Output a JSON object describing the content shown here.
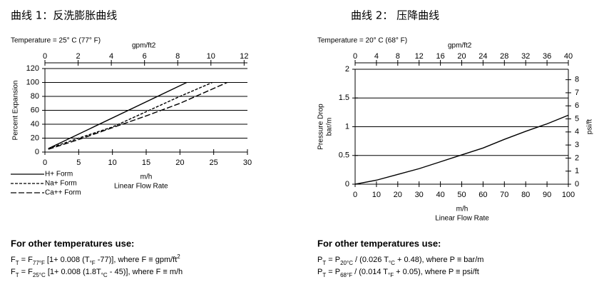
{
  "chart_data": [
    {
      "type": "line",
      "title": "曲线 1：反洗膨胀曲线",
      "subtitle": "Temperature = 25° C (77° F)",
      "x2label": "gpm/ft2",
      "x2lim": [
        0,
        12.2
      ],
      "x2ticks": [
        0,
        2,
        4,
        6,
        8,
        10,
        12
      ],
      "xlabel": [
        "m/h",
        "Linear Flow Rate"
      ],
      "xlim": [
        0,
        30
      ],
      "xticks": [
        0,
        5,
        10,
        15,
        20,
        25,
        30
      ],
      "ylabel": [
        "Percent Expansion"
      ],
      "ylim": [
        0,
        120
      ],
      "yticks": [
        0,
        20,
        40,
        60,
        80,
        100,
        120
      ],
      "grid": true,
      "series": [
        {
          "name": "H+ Form",
          "color": "#000000",
          "dash": "none",
          "x": [
            0.5,
            21
          ],
          "values": [
            5,
            100
          ]
        },
        {
          "name": "Na+ Form",
          "color": "#000000",
          "dash": "4 2",
          "x": [
            0.5,
            5,
            10,
            15,
            20,
            24.8
          ],
          "values": [
            5,
            20,
            36,
            58,
            80,
            100
          ]
        },
        {
          "name": "Ca++ Form",
          "color": "#000000",
          "dash": "8 3",
          "x": [
            0.5,
            5,
            10,
            15,
            20,
            27
          ],
          "values": [
            4,
            18,
            35,
            52,
            70,
            100
          ]
        }
      ],
      "footer": {
        "heading": "For other temperatures use:",
        "formulas": [
          [
            {
              "text": "F"
            },
            {
              "text": "T",
              "style": "sub"
            },
            {
              "text": " = F"
            },
            {
              "text": "77°F",
              "style": "sub"
            },
            {
              "text": " [1+ 0.008 (T"
            },
            {
              "text": "°F",
              "style": "sub"
            },
            {
              "text": " -77)], where F ≡ gpm/ft"
            },
            {
              "text": "2",
              "style": "super"
            }
          ],
          [
            {
              "text": "F"
            },
            {
              "text": "T",
              "style": "sub"
            },
            {
              "text": " = F"
            },
            {
              "text": "25°C",
              "style": "sub"
            },
            {
              "text": " [1+ 0.008 (1.8T"
            },
            {
              "text": "°C",
              "style": "sub"
            },
            {
              "text": " - 45)], where F ≡ m/h"
            }
          ]
        ]
      }
    },
    {
      "type": "line",
      "title": "曲线 2： 压降曲线",
      "subtitle": "Temperature = 20° C (68° F)",
      "x2label": "gpm/ft2",
      "x2lim": [
        0,
        40
      ],
      "x2ticks": [
        0,
        4,
        8,
        12,
        16,
        20,
        24,
        28,
        32,
        36,
        40
      ],
      "xlabel": [
        "m/h",
        "Linear Flow Rate"
      ],
      "xlim": [
        0,
        100
      ],
      "xticks": [
        0,
        10,
        20,
        30,
        40,
        50,
        60,
        70,
        80,
        90,
        100
      ],
      "ylabel": [
        "Pressure Drop",
        "bar/m"
      ],
      "ylim": [
        0,
        2
      ],
      "yticks": [
        0,
        0.5,
        1,
        1.5,
        2
      ],
      "y2label": "psi/ft",
      "y2lim": [
        0,
        8.8
      ],
      "y2ticks": [
        0,
        1,
        2,
        3,
        4,
        5,
        6,
        7,
        8
      ],
      "grid": true,
      "series": [
        {
          "color": "#000000",
          "dash": "none",
          "x": [
            0,
            10,
            20,
            30,
            40,
            50,
            60,
            70,
            80,
            90,
            100
          ],
          "values": [
            0,
            0.07,
            0.17,
            0.27,
            0.39,
            0.51,
            0.63,
            0.78,
            0.92,
            1.05,
            1.2
          ]
        }
      ],
      "footer": {
        "heading": "For other temperatures use:",
        "formulas": [
          [
            {
              "text": "P"
            },
            {
              "text": "T",
              "style": "sub"
            },
            {
              "text": " = P"
            },
            {
              "text": "20°C",
              "style": "sub"
            },
            {
              "text": " / (0.026 T"
            },
            {
              "text": "°C",
              "style": "sub"
            },
            {
              "text": " + 0.48), where P ≡ bar/m"
            }
          ],
          [
            {
              "text": "P"
            },
            {
              "text": "T",
              "style": "sub"
            },
            {
              "text": " = P"
            },
            {
              "text": "68°F",
              "style": "sub"
            },
            {
              "text": " / (0.014 T"
            },
            {
              "text": "°F",
              "style": "sub"
            },
            {
              "text": " + 0.05), where P ≡ psi/ft"
            }
          ]
        ]
      }
    }
  ]
}
